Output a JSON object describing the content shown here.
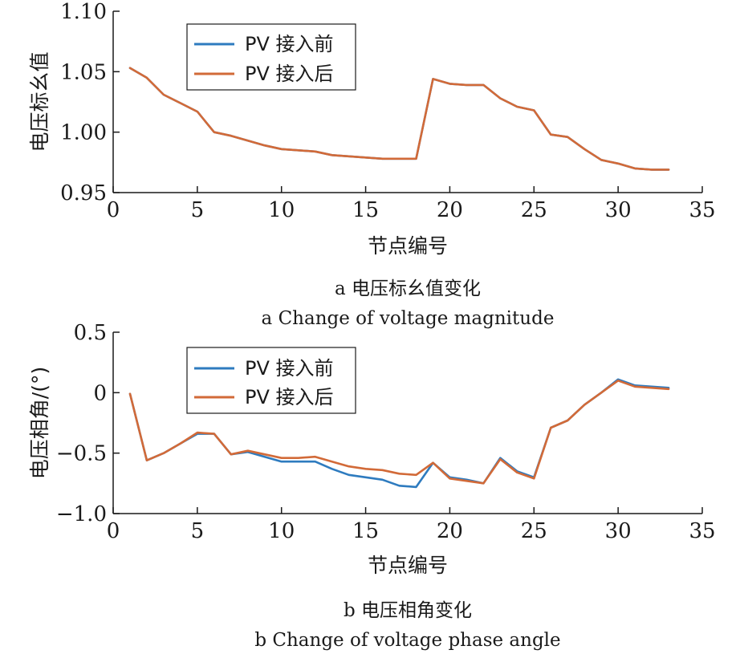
{
  "chart_data": [
    {
      "type": "line",
      "title": "",
      "xlabel": "节点编号",
      "ylabel": "电压标幺值",
      "xlim": [
        0,
        35
      ],
      "ylim": [
        0.95,
        1.1
      ],
      "xticks": [
        "0",
        "5",
        "10",
        "15",
        "20",
        "25",
        "30",
        "35"
      ],
      "yticks": [
        "0.95",
        "1.00",
        "1.05",
        "1.10"
      ],
      "x": [
        1,
        2,
        3,
        4,
        5,
        6,
        7,
        8,
        9,
        10,
        11,
        12,
        13,
        14,
        15,
        16,
        17,
        18,
        19,
        20,
        21,
        22,
        23,
        24,
        25,
        26,
        27,
        28,
        29,
        30,
        31,
        32,
        33
      ],
      "series": [
        {
          "name": "PV 接入前",
          "color": "#2e7bbf",
          "values": [
            1.053,
            1.045,
            1.031,
            1.024,
            1.017,
            1.0,
            0.997,
            0.993,
            0.989,
            0.986,
            0.985,
            0.984,
            0.981,
            0.98,
            0.979,
            0.978,
            0.978,
            0.978,
            1.044,
            1.04,
            1.039,
            1.039,
            1.028,
            1.021,
            1.018,
            0.998,
            0.996,
            0.986,
            0.977,
            0.974,
            0.97,
            0.969,
            0.969
          ]
        },
        {
          "name": "PV 接入后",
          "color": "#d26a38",
          "values": [
            1.053,
            1.045,
            1.031,
            1.024,
            1.017,
            1.0,
            0.997,
            0.993,
            0.989,
            0.986,
            0.985,
            0.984,
            0.981,
            0.98,
            0.979,
            0.978,
            0.978,
            0.978,
            1.044,
            1.04,
            1.039,
            1.039,
            1.028,
            1.021,
            1.018,
            0.998,
            0.996,
            0.986,
            0.977,
            0.974,
            0.97,
            0.969,
            0.969
          ]
        }
      ],
      "legend": "top-left",
      "grid": false,
      "caption_cn": "a 电压标幺值变化",
      "caption_en": "a Change of voltage magnitude"
    },
    {
      "type": "line",
      "title": "",
      "xlabel": "节点编号",
      "ylabel": "电压相角/(°)",
      "xlim": [
        0,
        35
      ],
      "ylim": [
        -1.0,
        0.5
      ],
      "xticks": [
        "0",
        "5",
        "10",
        "15",
        "20",
        "25",
        "30",
        "35"
      ],
      "yticks": [
        "−1.0",
        "−0.5",
        "0",
        "0.5"
      ],
      "x": [
        1,
        2,
        3,
        4,
        5,
        6,
        7,
        8,
        9,
        10,
        11,
        12,
        13,
        14,
        15,
        16,
        17,
        18,
        19,
        20,
        21,
        22,
        23,
        24,
        25,
        26,
        27,
        28,
        29,
        30,
        31,
        32,
        33
      ],
      "series": [
        {
          "name": "PV 接入前",
          "color": "#2e7bbf",
          "values": [
            -0.01,
            -0.56,
            -0.5,
            -0.42,
            -0.34,
            -0.34,
            -0.51,
            -0.49,
            -0.53,
            -0.57,
            -0.57,
            -0.57,
            -0.63,
            -0.68,
            -0.7,
            -0.72,
            -0.77,
            -0.78,
            -0.58,
            -0.7,
            -0.72,
            -0.75,
            -0.54,
            -0.65,
            -0.7,
            -0.29,
            -0.23,
            -0.1,
            0.0,
            0.11,
            0.06,
            0.05,
            0.04
          ]
        },
        {
          "name": "PV 接入后",
          "color": "#d26a38",
          "values": [
            -0.01,
            -0.56,
            -0.5,
            -0.42,
            -0.33,
            -0.34,
            -0.51,
            -0.48,
            -0.51,
            -0.54,
            -0.54,
            -0.53,
            -0.57,
            -0.61,
            -0.63,
            -0.64,
            -0.67,
            -0.68,
            -0.58,
            -0.71,
            -0.73,
            -0.75,
            -0.55,
            -0.66,
            -0.71,
            -0.29,
            -0.23,
            -0.1,
            0.0,
            0.1,
            0.05,
            0.04,
            0.03
          ]
        }
      ],
      "legend": "top-left",
      "grid": false,
      "caption_cn": "b 电压相角变化",
      "caption_en": "b Change of voltage phase angle"
    }
  ]
}
